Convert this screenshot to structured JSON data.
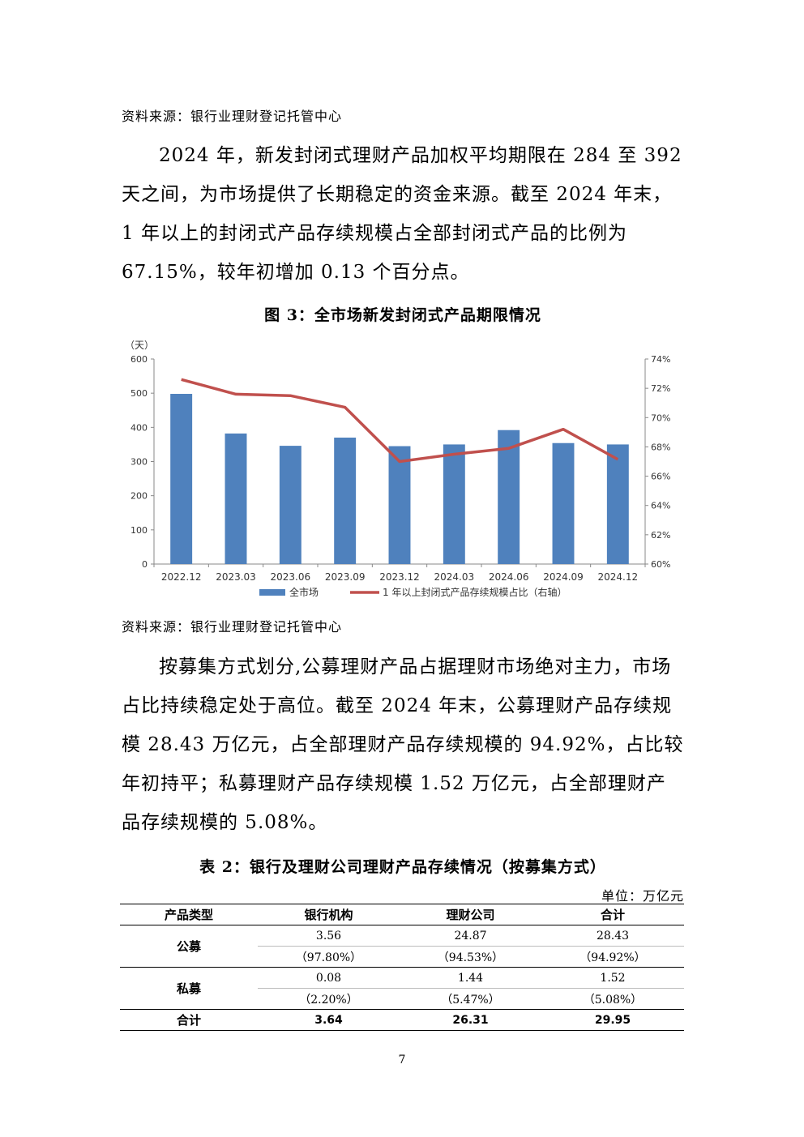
{
  "source1": "资料来源：银行业理财登记托管中心",
  "para1": "2024 年，新发封闭式理财产品加权平均期限在 284 至 392 天之间，为市场提供了长期稳定的资金来源。截至 2024 年末，1 年以上的封闭式产品存续规模占全部封闭式产品的比例为 67.15%，较年初增加 0.13 个百分点。",
  "figure_caption": "图 3：全市场新发封闭式产品期限情况",
  "chart_data": {
    "type": "bar",
    "categories": [
      "2022.12",
      "2023.03",
      "2023.06",
      "2023.09",
      "2023.12",
      "2024.03",
      "2024.06",
      "2024.09",
      "2024.12"
    ],
    "series": [
      {
        "name": "全市场",
        "type": "bar",
        "axis": "left",
        "color": "#4F81BD",
        "values": [
          498,
          382,
          346,
          370,
          345,
          350,
          392,
          354,
          350
        ]
      },
      {
        "name": "1 年以上封闭式产品存续规模占比（右轴）",
        "type": "line",
        "axis": "right",
        "color": "#C0504D",
        "values": [
          72.6,
          71.6,
          71.5,
          70.7,
          67.0,
          67.5,
          67.9,
          69.2,
          67.15
        ]
      }
    ],
    "y_left_unit": "（天）",
    "y_left_range": [
      0,
      600
    ],
    "y_left_ticks": [
      "0",
      "100",
      "200",
      "300",
      "400",
      "500",
      "600"
    ],
    "y_right_range": [
      60,
      74
    ],
    "y_right_ticks": [
      "60%",
      "62%",
      "64%",
      "66%",
      "68%",
      "70%",
      "72%",
      "74%"
    ],
    "grid": false,
    "legend_position": "bottom"
  },
  "source2": "资料来源：银行业理财登记托管中心",
  "para2": "按募集方式划分,公募理财产品占据理财市场绝对主力，市场占比持续稳定处于高位。截至 2024 年末，公募理财产品存续规模 28.43 万亿元，占全部理财产品存续规模的 94.92%，占比较年初持平；私募理财产品存续规模 1.52 万亿元，占全部理财产品存续规模的 5.08%。",
  "table_caption": "表 2：银行及理财公司理财产品存续情况（按募集方式）",
  "table_unit": "单位：万亿元",
  "table": {
    "headers": [
      "产品类型",
      "银行机构",
      "理财公司",
      "合计"
    ],
    "public": {
      "label": "公募",
      "values": [
        "3.56",
        "24.87",
        "28.43"
      ],
      "shares": [
        "（97.80%）",
        "（94.53%）",
        "（94.92%）"
      ]
    },
    "private": {
      "label": "私募",
      "values": [
        "0.08",
        "1.44",
        "1.52"
      ],
      "shares": [
        "（2.20%）",
        "（5.47%）",
        "（5.08%）"
      ]
    },
    "total": {
      "label": "合计",
      "values": [
        "3.64",
        "26.31",
        "29.95"
      ]
    }
  },
  "page_number": "7"
}
